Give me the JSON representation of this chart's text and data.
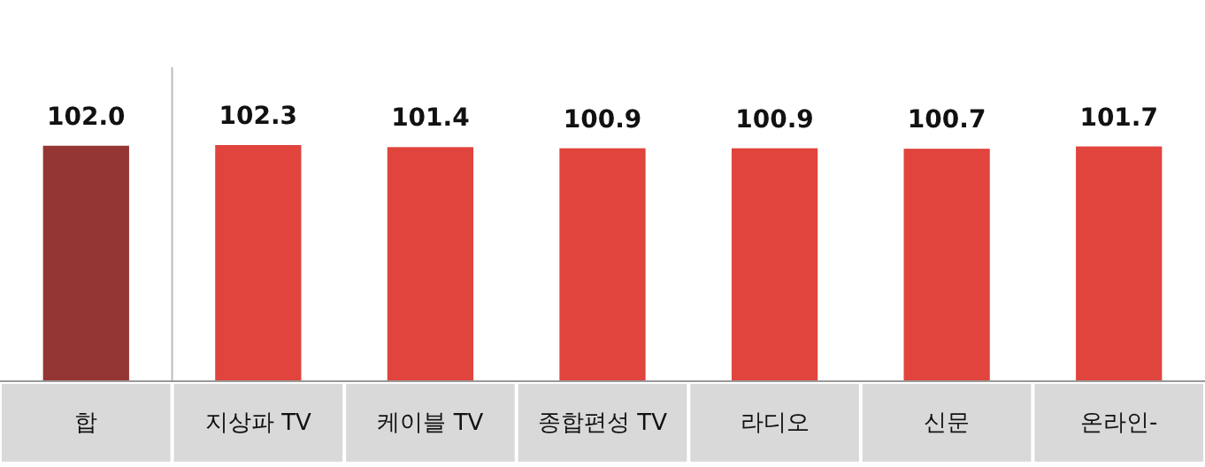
{
  "chart_data": {
    "type": "bar",
    "categories": [
      "합",
      "지상파 TV",
      "케이블 TV",
      "종합편성 TV",
      "라디오",
      "신문",
      "온라인-"
    ],
    "values": [
      102.0,
      102.3,
      101.4,
      100.9,
      100.9,
      100.7,
      101.7
    ],
    "colors": [
      "#943634",
      "#e0443c",
      "#e0443c",
      "#e0443c",
      "#e0443c",
      "#e0443c",
      "#e0443c"
    ],
    "value_labels": [
      "102.0",
      "102.3",
      "101.4",
      "100.9",
      "100.9",
      "100.7",
      "101.7"
    ],
    "tick_labels": "x"
  }
}
